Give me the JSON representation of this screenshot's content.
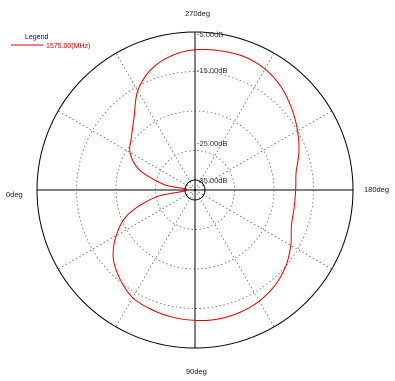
{
  "chart_data": {
    "type": "polar-line",
    "legend_title": "Legend",
    "legend_position": "top-left",
    "angle_labels": [
      "270deg",
      "180deg",
      "90deg",
      "0deg"
    ],
    "radial_ticks": [
      "-5.00dB",
      "-15.00dB",
      "-25.00dB",
      "-35.00dB"
    ],
    "rlim": [
      -40,
      0
    ],
    "grid": true,
    "series": [
      {
        "name": "1575.00(MHz)",
        "color": "#e00000",
        "angle_deg": [
          0,
          10,
          20,
          30,
          40,
          50,
          60,
          70,
          80,
          90,
          100,
          110,
          120,
          130,
          140,
          150,
          160,
          170,
          180,
          190,
          200,
          210,
          220,
          230,
          240,
          250,
          260,
          270,
          280,
          290,
          300,
          310,
          320,
          330,
          340,
          350
        ],
        "gain_db": [
          -38,
          -30,
          -22,
          -17,
          -13,
          -10.5,
          -8.5,
          -7.8,
          -7.3,
          -7,
          -6.8,
          -7,
          -7.5,
          -8.5,
          -10,
          -12,
          -14,
          -14.5,
          -14.5,
          -14,
          -12,
          -10,
          -8,
          -6,
          -4.6,
          -4,
          -4.2,
          -4.5,
          -5.5,
          -7.5,
          -11,
          -16,
          -19,
          -21,
          -25,
          -32
        ]
      }
    ]
  }
}
